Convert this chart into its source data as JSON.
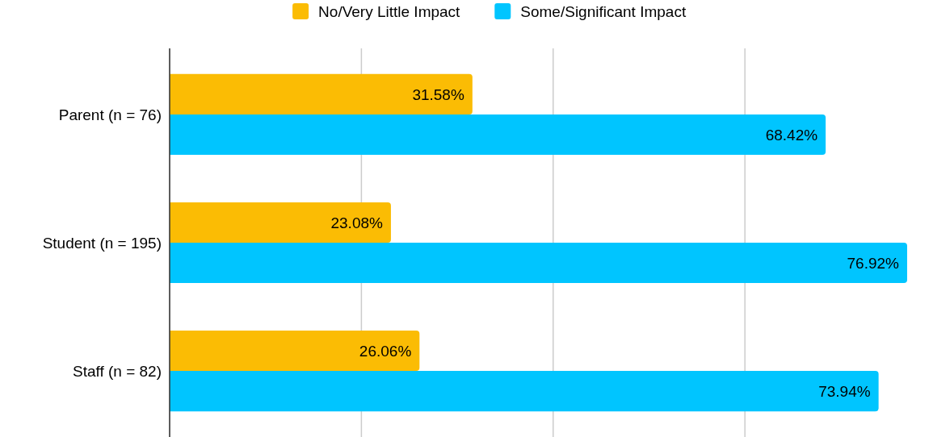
{
  "chart_data": {
    "type": "bar",
    "orientation": "horizontal",
    "categories": [
      "Parent (n = 76)",
      "Student (n = 195)",
      "Staff (n = 82)"
    ],
    "series": [
      {
        "name": "No/Very Little Impact",
        "color": "#fbbc04",
        "values": [
          31.58,
          23.08,
          26.06
        ],
        "value_labels": [
          "31.58%",
          "23.08%",
          "26.06%"
        ]
      },
      {
        "name": "Some/Significant Impact",
        "color": "#00c5ff",
        "values": [
          68.42,
          76.92,
          73.94
        ],
        "value_labels": [
          "68.42%",
          "76.92%",
          "73.94%"
        ]
      }
    ],
    "xticks": [
      {
        "value": 0,
        "label": null
      },
      {
        "value": 20,
        "label": null
      },
      {
        "value": 40,
        "label": null
      },
      {
        "value": 60,
        "label": null
      }
    ],
    "grid": "x",
    "legend": "top",
    "tick_labels": "y"
  }
}
